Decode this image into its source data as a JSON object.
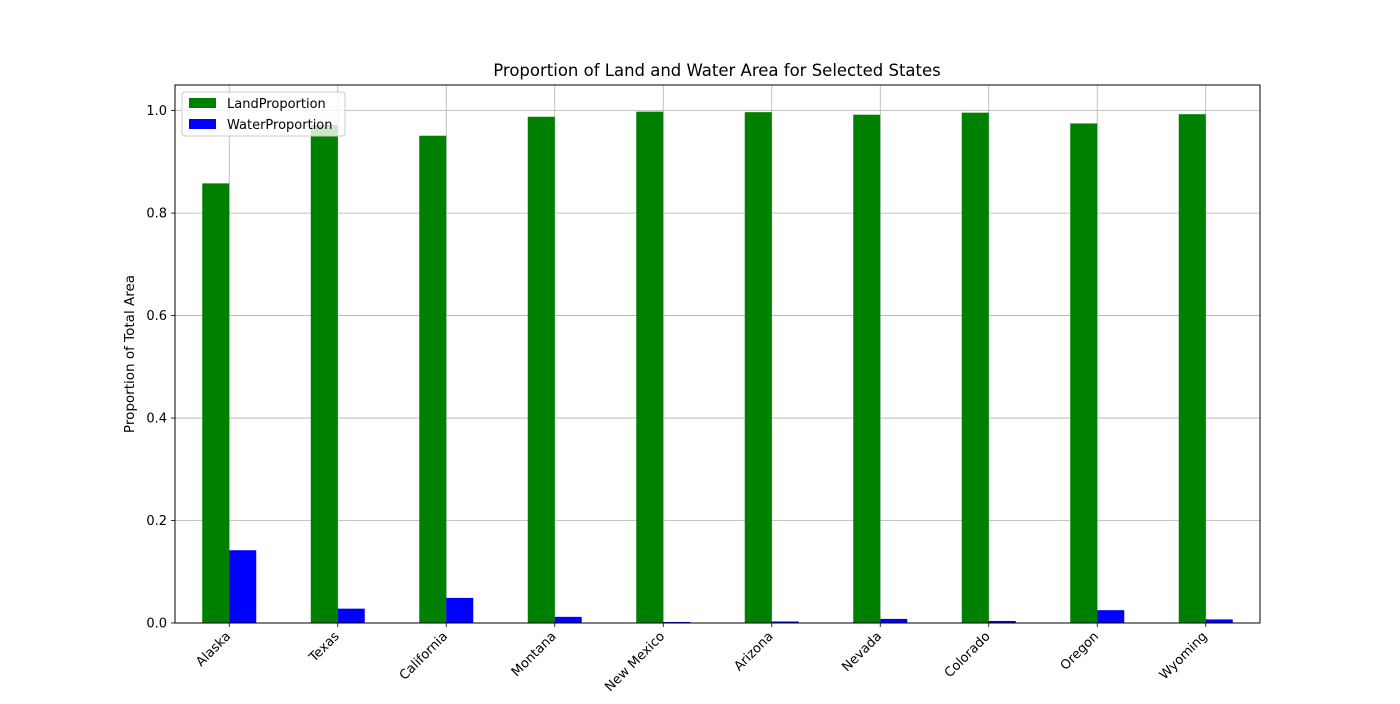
{
  "chart_data": {
    "type": "bar",
    "title": "Proportion of Land and Water Area for Selected States",
    "xlabel": "",
    "ylabel": "Proportion of Total Area",
    "categories": [
      "Alaska",
      "Texas",
      "California",
      "Montana",
      "New Mexico",
      "Arizona",
      "Nevada",
      "Colorado",
      "Oregon",
      "Wyoming"
    ],
    "series": [
      {
        "name": "LandProportion",
        "color": "#008000",
        "values": [
          0.858,
          0.972,
          0.951,
          0.988,
          0.998,
          0.997,
          0.992,
          0.996,
          0.975,
          0.993
        ]
      },
      {
        "name": "WaterProportion",
        "color": "#0000ff",
        "values": [
          0.142,
          0.028,
          0.049,
          0.012,
          0.002,
          0.003,
          0.008,
          0.004,
          0.025,
          0.007
        ]
      }
    ],
    "ylim": [
      0,
      1.05
    ],
    "yticks": [
      "0.0",
      "0.2",
      "0.4",
      "0.6",
      "0.8",
      "1.0"
    ],
    "grid": true,
    "legend_position": "upper-left"
  }
}
